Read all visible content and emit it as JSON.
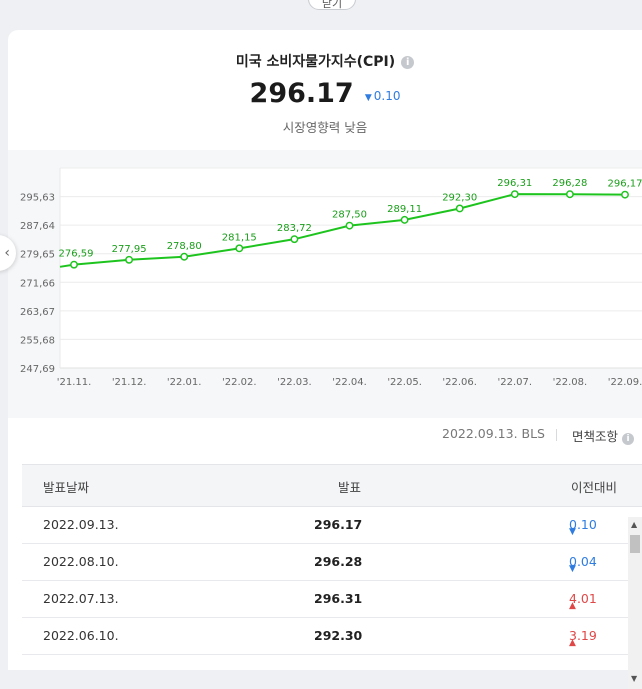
{
  "top_button": {
    "label": "닫기"
  },
  "header": {
    "title": "미국 소비자물가지수(CPI)",
    "info_icon": "i",
    "value": "296.17",
    "change": "0.10",
    "change_direction": "down",
    "impact": "시장영향력 낮음"
  },
  "chart_data": {
    "type": "line",
    "categories": [
      "'21.11.",
      "'21.12.",
      "'22.01.",
      "'22.02.",
      "'22.03.",
      "'22.04.",
      "'22.05.",
      "'22.06.",
      "'22.07.",
      "'22.08.",
      "'22.09."
    ],
    "values": [
      276.59,
      277.95,
      278.8,
      281.15,
      283.72,
      287.5,
      289.11,
      292.3,
      296.31,
      296.28,
      296.17
    ],
    "labels": [
      "276,59",
      "277,95",
      "278,80",
      "281,15",
      "283,72",
      "287,50",
      "289,11",
      "292,30",
      "296,31",
      "296,28",
      "296,17"
    ],
    "yticks": [
      "295,63",
      "287,64",
      "279,65",
      "271,66",
      "263,67",
      "255,68",
      "247,69"
    ],
    "ylim": [
      247.69,
      303.62
    ],
    "line_color": "#1ec41e",
    "grid": true
  },
  "source": {
    "date_src": "2022.09.13. BLS",
    "disclaimer": "면책조항",
    "disclaimer_icon": "i"
  },
  "table": {
    "headers": {
      "date": "발표날짜",
      "value": "발표",
      "change": "이전대비"
    },
    "rows": [
      {
        "date": "2022.09.13.",
        "value": "296.17",
        "change": "0.10",
        "dir": "down"
      },
      {
        "date": "2022.08.10.",
        "value": "296.28",
        "change": "0.04",
        "dir": "down"
      },
      {
        "date": "2022.07.13.",
        "value": "296.31",
        "change": "4.01",
        "dir": "up"
      },
      {
        "date": "2022.06.10.",
        "value": "292.30",
        "change": "3.19",
        "dir": "up"
      }
    ]
  },
  "colors": {
    "down": "#2f7de0",
    "up": "#e04848"
  },
  "icons": {
    "nav_prev": "chevron-left-icon",
    "down_tri": "▼",
    "up_tri": "▲"
  }
}
